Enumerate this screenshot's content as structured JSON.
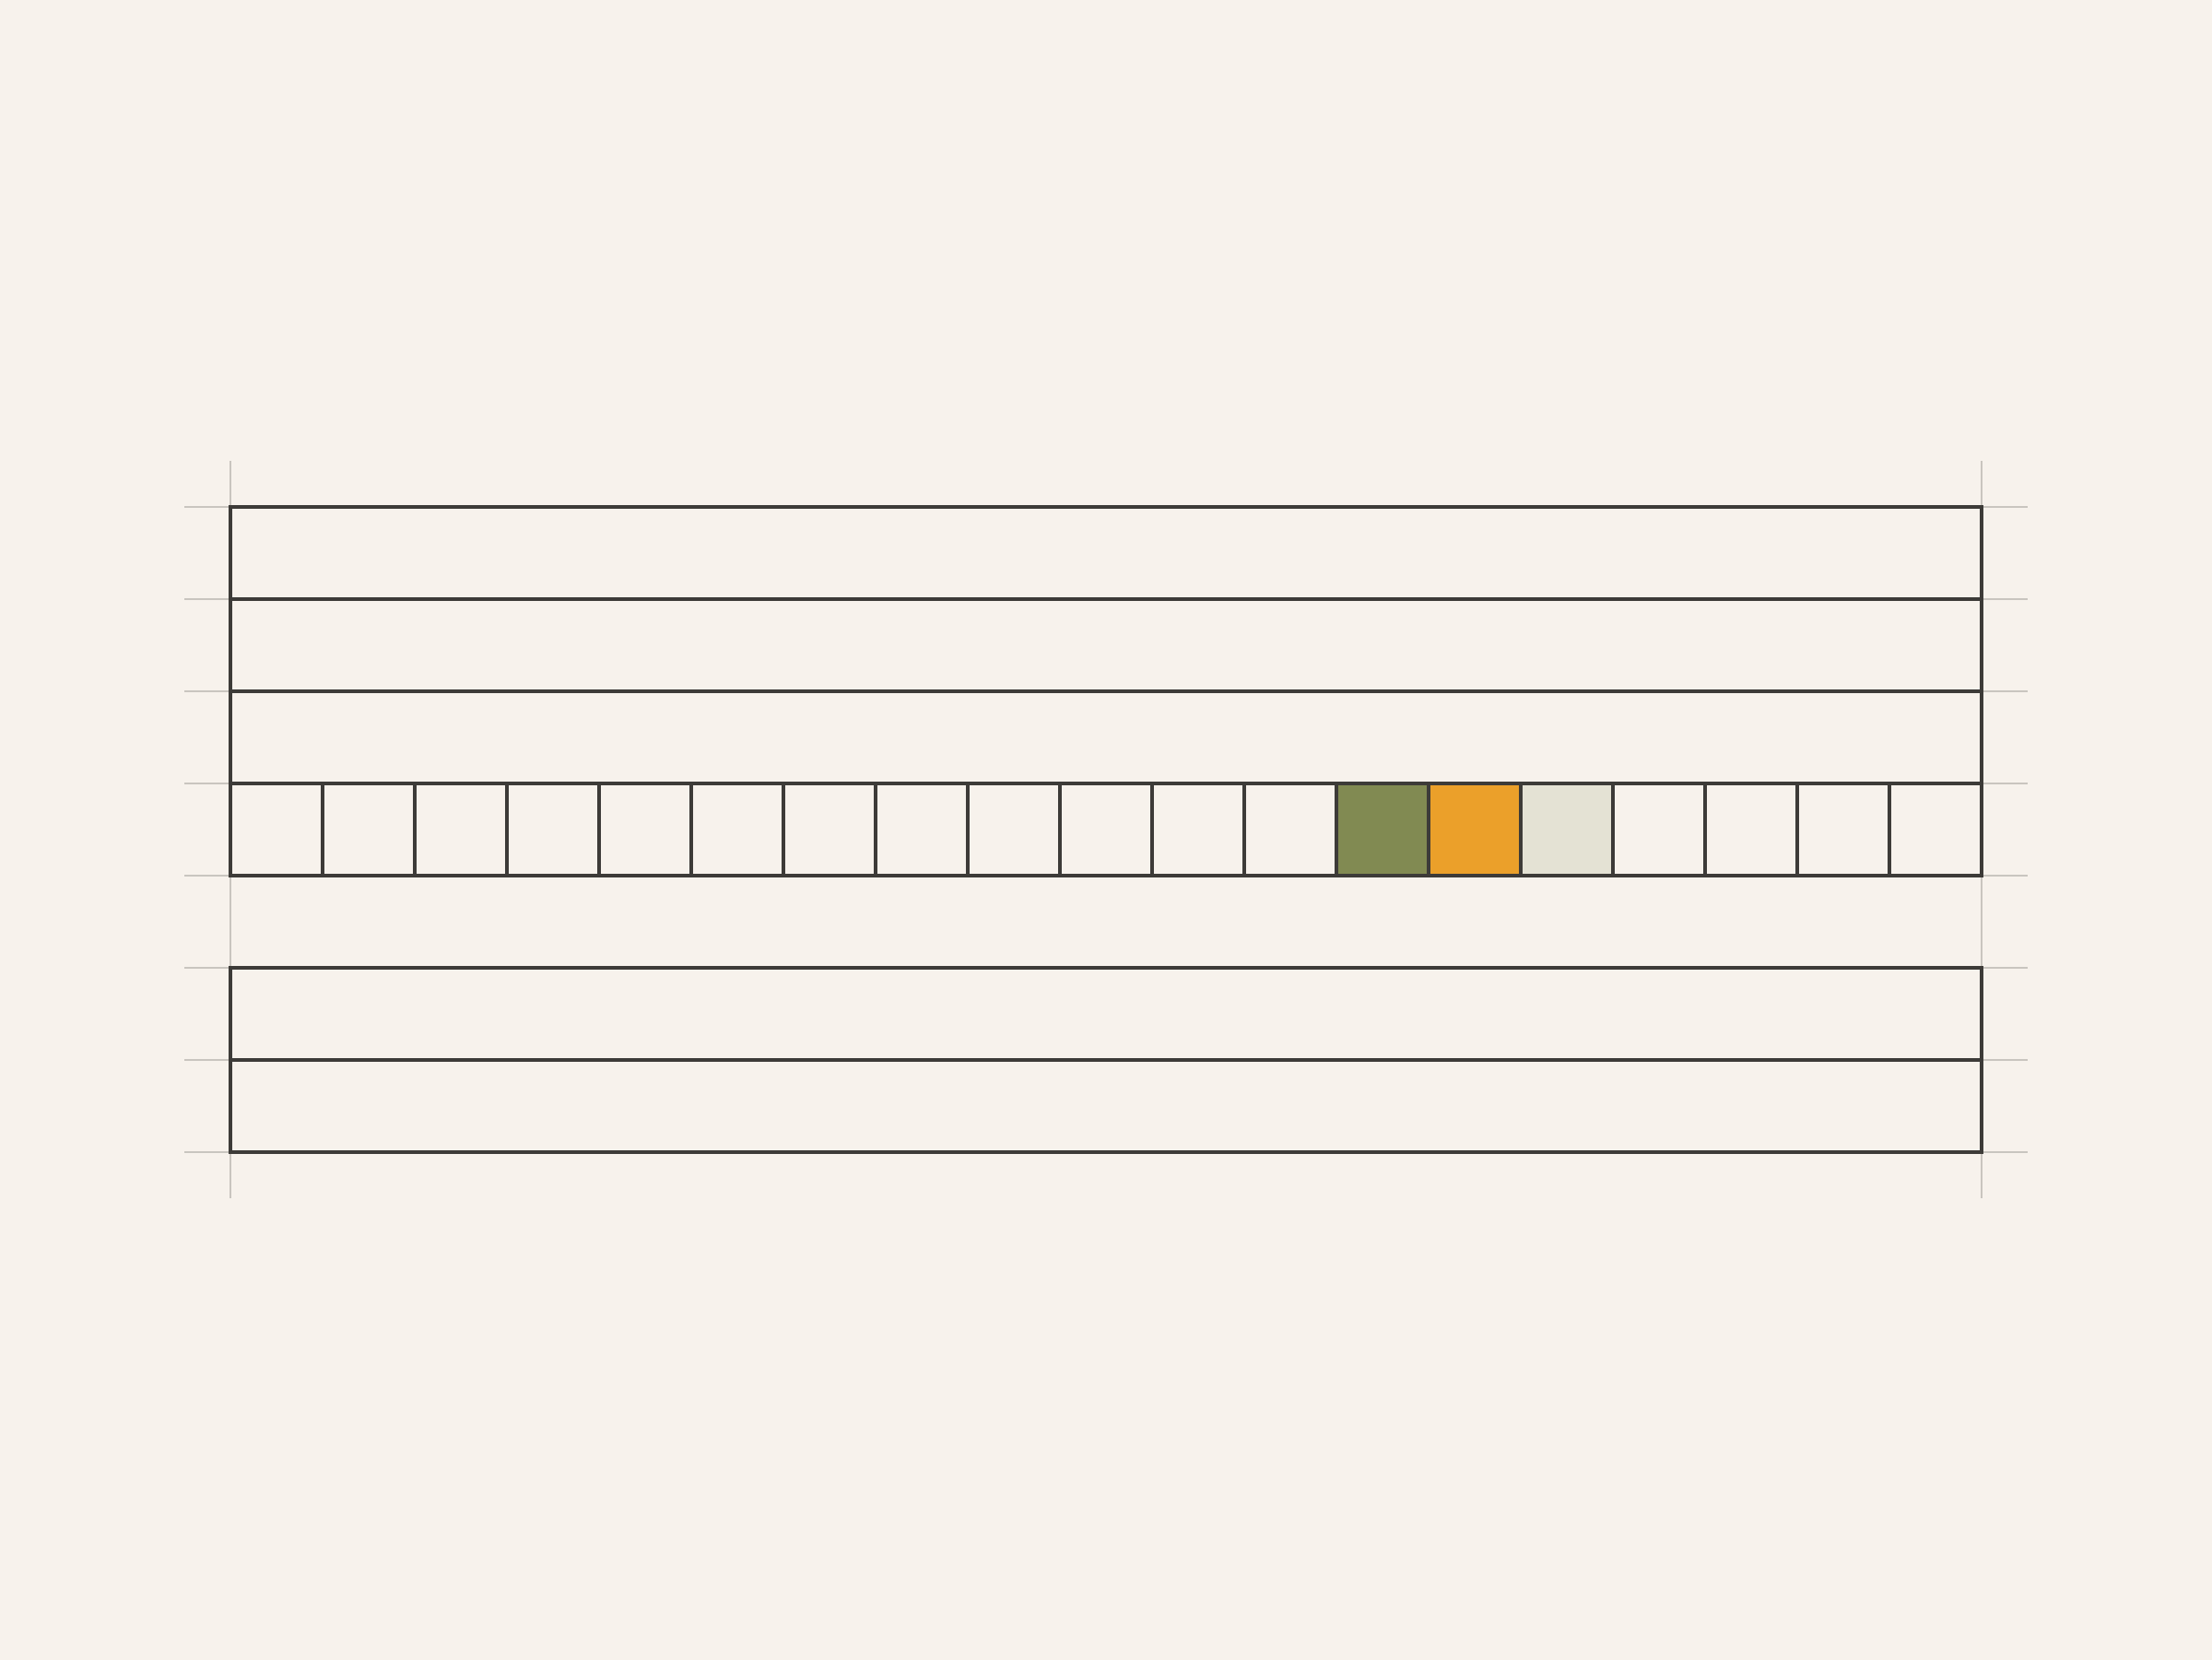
{
  "colors": {
    "background": "#f7f2ec",
    "line": "#3d3b38",
    "guide": "#c9c5bf",
    "cell_empty": "#f7f2ec"
  },
  "grid": {
    "columns": 19,
    "rows": [
      {
        "type": "bar"
      },
      {
        "type": "bar"
      },
      {
        "type": "bar"
      },
      {
        "type": "cells"
      },
      {
        "type": "empty"
      },
      {
        "type": "bar"
      },
      {
        "type": "bar"
      }
    ],
    "highlighted_cells": [
      {
        "column": 13,
        "color": "#818a52"
      },
      {
        "column": 14,
        "color": "#eba02a"
      },
      {
        "column": 15,
        "color": "#e4e2d4"
      }
    ]
  }
}
